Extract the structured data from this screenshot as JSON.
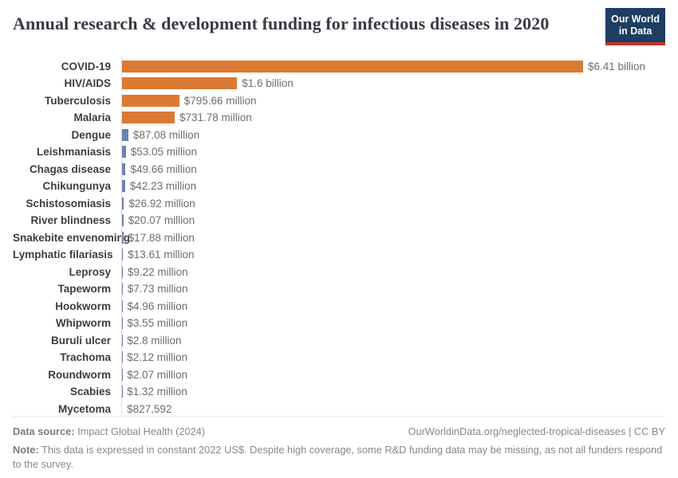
{
  "header": {
    "title": "Annual research & development funding for infectious diseases in 2020",
    "logo": {
      "line1": "Our World",
      "line2": "in Data",
      "bg_color": "#1d3d63",
      "accent_color": "#c5332b"
    }
  },
  "chart_data": {
    "type": "bar",
    "orientation": "horizontal",
    "title": "Annual research & development funding for infectious diseases in 2020",
    "categories": [
      "COVID-19",
      "HIV/AIDS",
      "Tuberculosis",
      "Malaria",
      "Dengue",
      "Leishmaniasis",
      "Chagas disease",
      "Chikungunya",
      "Schistosomiasis",
      "River blindness",
      "Snakebite envenoming",
      "Lymphatic filariasis",
      "Leprosy",
      "Tapeworm",
      "Hookworm",
      "Whipworm",
      "Buruli ulcer",
      "Trachoma",
      "Roundworm",
      "Scabies",
      "Mycetoma"
    ],
    "values_million_usd": [
      6410,
      1600,
      795.66,
      731.78,
      87.08,
      53.05,
      49.66,
      42.23,
      26.92,
      20.07,
      17.88,
      13.61,
      9.22,
      7.73,
      4.96,
      3.55,
      2.8,
      2.12,
      2.07,
      1.32,
      0.827592
    ],
    "value_labels": [
      "$6.41 billion",
      "$1.6 billion",
      "$795.66 million",
      "$731.78 million",
      "$87.08 million",
      "$53.05 million",
      "$49.66 million",
      "$42.23 million",
      "$26.92 million",
      "$20.07 million",
      "$17.88 million",
      "$13.61 million",
      "$9.22 million",
      "$7.73 million",
      "$4.96 million",
      "$3.55 million",
      "$2.8 million",
      "$2.12 million",
      "$2.07 million",
      "$1.32 million",
      "$827,592"
    ],
    "bar_colors": [
      "#DB7A33",
      "#DB7A33",
      "#DB7A33",
      "#DB7A33",
      "#6D84B2",
      "#6D84B2",
      "#6D84B2",
      "#6D84B2",
      "#6D84B2",
      "#6D84B2",
      "#6D84B2",
      "#6D84B2",
      "#6D84B2",
      "#6D84B2",
      "#6D84B2",
      "#6D84B2",
      "#6D84B2",
      "#6D84B2",
      "#6D84B2",
      "#6D84B2",
      "#6D84B2"
    ],
    "xlim_million_usd": [
      0,
      6410
    ],
    "grid": false,
    "legend": false
  },
  "footer": {
    "datasource_label": "Data source:",
    "datasource_value": " Impact Global Health (2024)",
    "link": "OurWorldinData.org/neglected-tropical-diseases | CC BY",
    "note_label": "Note:",
    "note_value": " This data is expressed in constant 2022 US$. Despite high coverage, some R&D funding data may be missing, as not all funders respond to the survey."
  }
}
